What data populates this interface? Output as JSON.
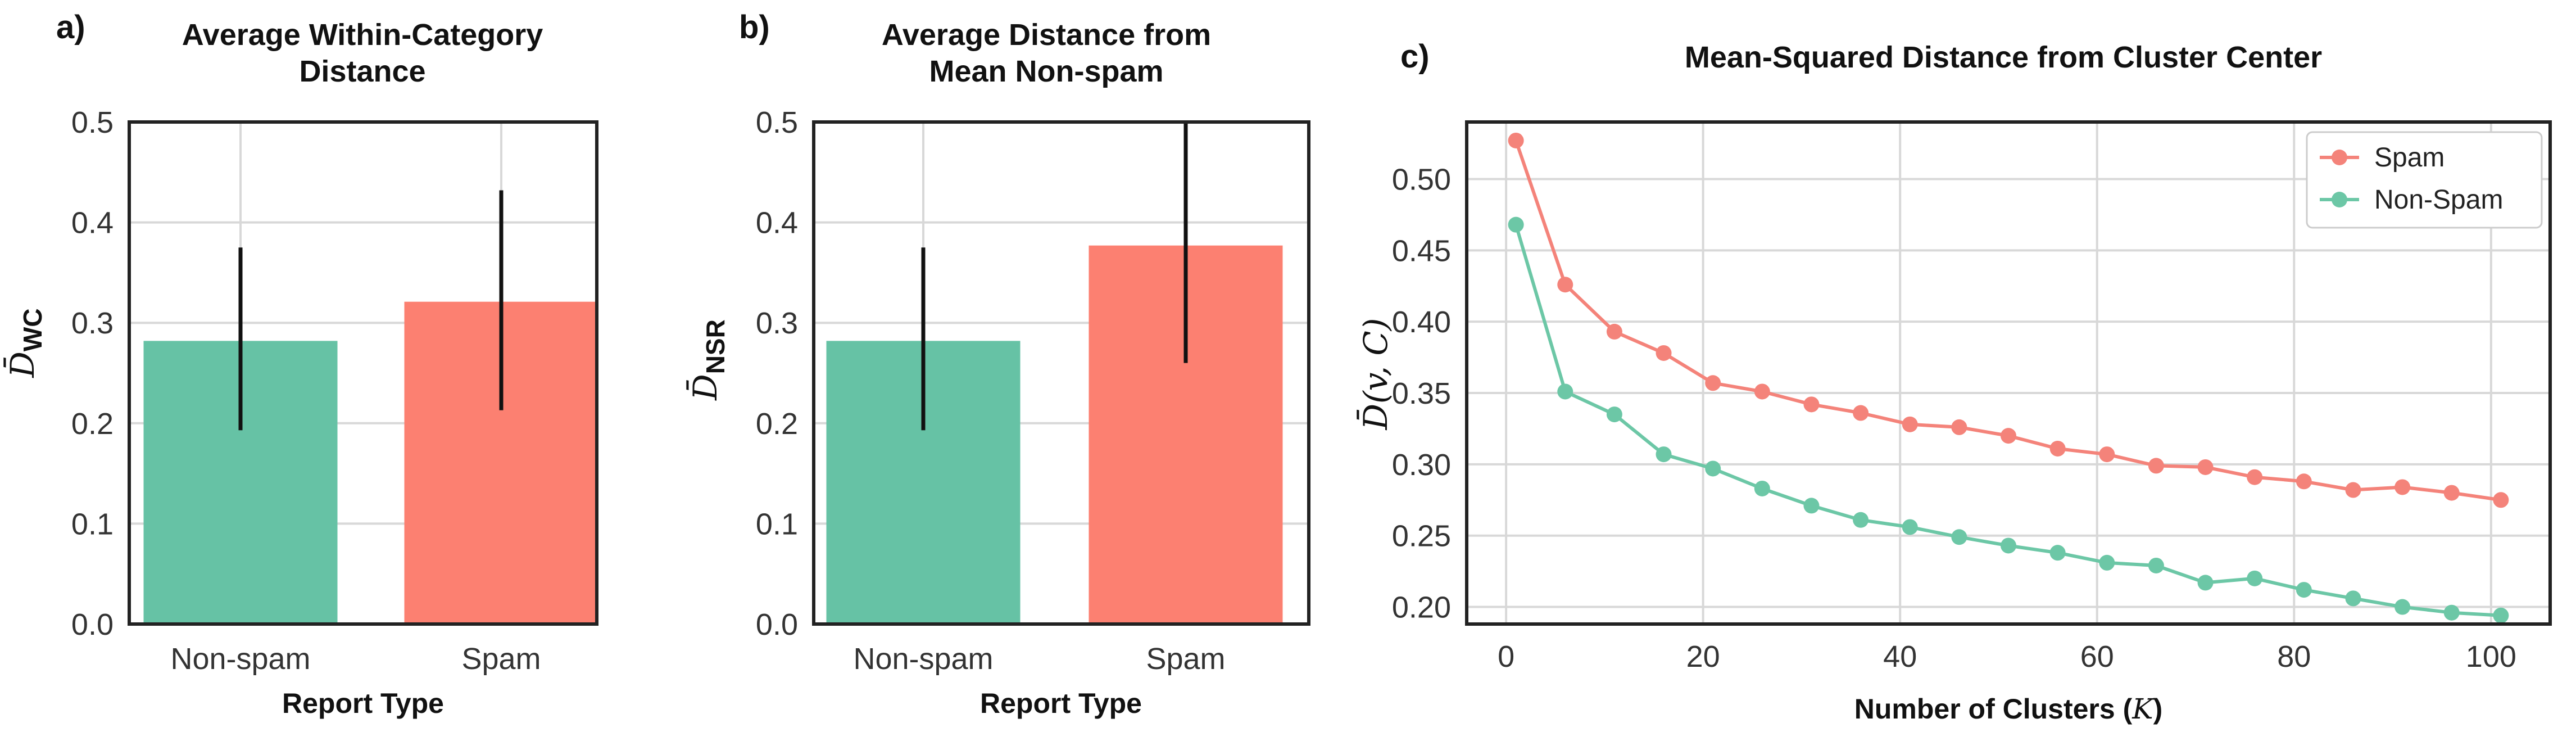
{
  "chart_data": [
    {
      "type": "bar",
      "panel_label": "a)",
      "title_lines": [
        "Average Within-Category",
        "Distance"
      ],
      "categories": [
        "Non-spam",
        "Spam"
      ],
      "values": [
        0.282,
        0.321
      ],
      "error_low": [
        0.193,
        0.213
      ],
      "error_high": [
        0.375,
        0.432
      ],
      "colors": [
        "#66c2a5",
        "#fc8071"
      ],
      "xlabel": "Report Type",
      "ylabel_main": "D̄",
      "ylabel_sub": "WC",
      "ylim": [
        0,
        0.5
      ],
      "yticks": [
        "0.0",
        "0.1",
        "0.2",
        "0.3",
        "0.4",
        "0.5"
      ]
    },
    {
      "type": "bar",
      "panel_label": "b)",
      "title_lines": [
        "Average Distance from",
        "Mean Non-spam"
      ],
      "categories": [
        "Non-spam",
        "Spam"
      ],
      "values": [
        0.282,
        0.377
      ],
      "error_low": [
        0.193,
        0.26
      ],
      "error_high": [
        0.375,
        0.5
      ],
      "colors": [
        "#66c2a5",
        "#fc8071"
      ],
      "xlabel": "Report Type",
      "ylabel_main": "D̄",
      "ylabel_sub": "NSR",
      "ylim": [
        0,
        0.5
      ],
      "yticks": [
        "0.0",
        "0.1",
        "0.2",
        "0.3",
        "0.4",
        "0.5"
      ]
    },
    {
      "type": "line",
      "panel_label": "c)",
      "title_lines": [
        "Mean-Squared Distance from Cluster Center"
      ],
      "x": [
        1,
        6,
        11,
        16,
        21,
        26,
        31,
        36,
        41,
        46,
        51,
        56,
        61,
        66,
        71,
        76,
        81,
        86,
        91,
        96,
        101
      ],
      "series": [
        {
          "name": "Spam",
          "color": "#f4837a",
          "values": [
            0.527,
            0.426,
            0.393,
            0.378,
            0.357,
            0.351,
            0.342,
            0.336,
            0.328,
            0.326,
            0.32,
            0.311,
            0.307,
            0.299,
            0.298,
            0.291,
            0.288,
            0.282,
            0.284,
            0.28,
            0.275
          ]
        },
        {
          "name": "Non-Spam",
          "color": "#6cc7a6",
          "values": [
            0.468,
            0.351,
            0.335,
            0.307,
            0.297,
            0.283,
            0.271,
            0.261,
            0.256,
            0.249,
            0.243,
            0.238,
            0.231,
            0.229,
            0.217,
            0.22,
            0.212,
            0.206,
            0.2,
            0.196,
            0.194
          ]
        }
      ],
      "xlabel_prefix": "Number of Clusters (",
      "xlabel_var": "K",
      "xlabel_suffix": ")",
      "ylabel": "D̄(v, C)",
      "xlim": [
        -4,
        106
      ],
      "ylim": [
        0.188,
        0.54
      ],
      "xticks": [
        0,
        20,
        40,
        60,
        80,
        100
      ],
      "yticks": [
        0.2,
        0.25,
        0.3,
        0.35,
        0.4,
        0.45,
        0.5
      ],
      "ytick_labels": [
        "0.20",
        "0.25",
        "0.30",
        "0.35",
        "0.40",
        "0.45",
        "0.50"
      ],
      "legend_position": "top-right"
    }
  ]
}
